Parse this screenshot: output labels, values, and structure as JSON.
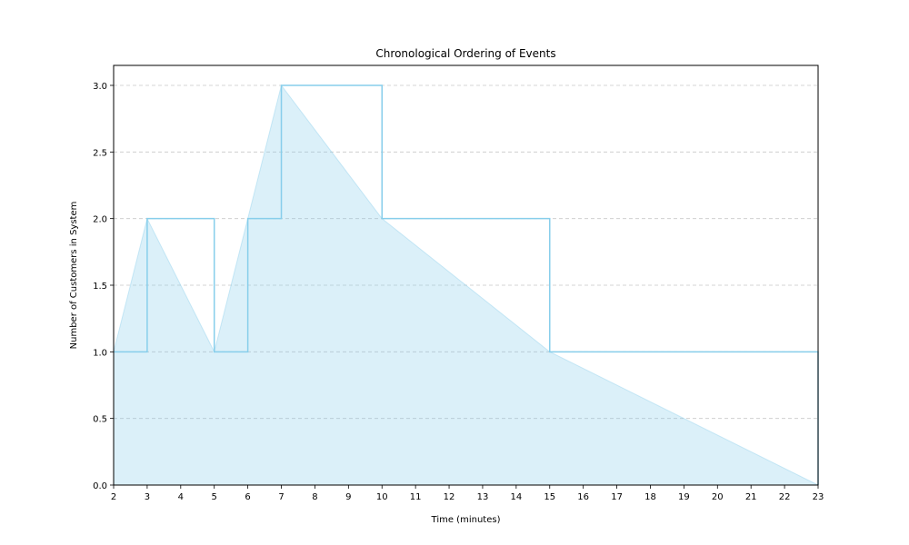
{
  "chart_data": {
    "type": "area",
    "title": "Chronological Ordering of Events",
    "xlabel": "Time (minutes)",
    "ylabel": "Number of Customers in System",
    "xlim": [
      2,
      23
    ],
    "ylim": [
      0,
      3.15
    ],
    "xticks": [
      2,
      3,
      4,
      5,
      6,
      7,
      8,
      9,
      10,
      11,
      12,
      13,
      14,
      15,
      16,
      17,
      18,
      19,
      20,
      21,
      22,
      23
    ],
    "yticks": [
      0.0,
      0.5,
      1.0,
      1.5,
      2.0,
      2.5,
      3.0
    ],
    "ytick_labels": [
      "0.0",
      "0.5",
      "1.0",
      "1.5",
      "2.0",
      "2.5",
      "3.0"
    ],
    "grid": {
      "y": true,
      "x": false,
      "style": "dashed"
    },
    "series": [
      {
        "kind": "step",
        "x": [
          2,
          3,
          5,
          6,
          7,
          10,
          15,
          23
        ],
        "y": [
          1,
          2,
          1,
          2,
          3,
          2,
          1,
          0
        ],
        "color": "#87CEEB"
      },
      {
        "kind": "area",
        "x": [
          2,
          3,
          5,
          6,
          7,
          10,
          15,
          23
        ],
        "y": [
          1,
          2,
          1,
          2,
          3,
          2,
          1,
          0
        ],
        "color": "#87CEEB",
        "opacity": 0.3
      }
    ]
  }
}
